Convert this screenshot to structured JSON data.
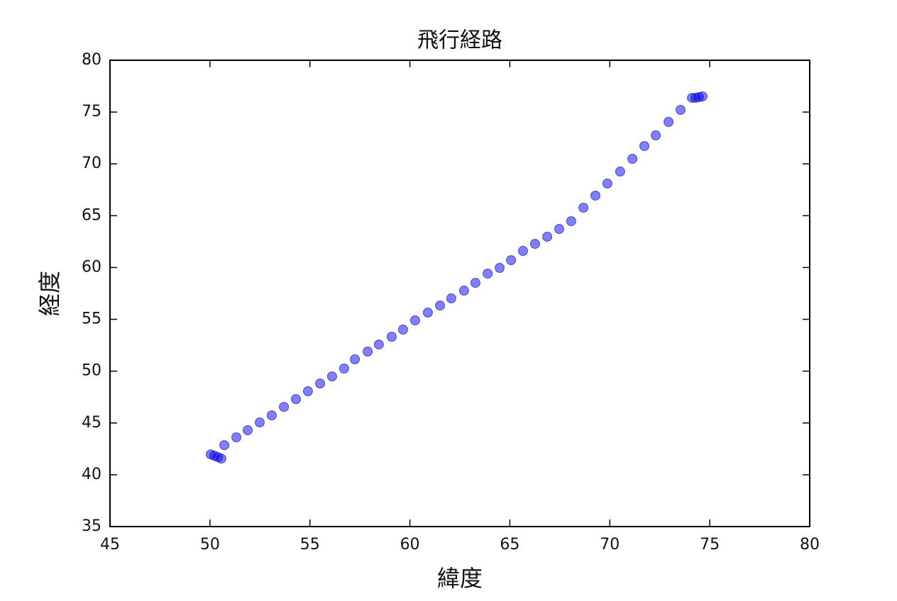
{
  "chart_data": {
    "type": "scatter",
    "title": "飛行経路",
    "xlabel": "緯度",
    "ylabel": "経度",
    "x": [
      50.04,
      50.22,
      50.4,
      50.57,
      50.72,
      51.32,
      51.89,
      52.49,
      53.09,
      53.7,
      54.3,
      54.9,
      55.51,
      56.11,
      56.71,
      57.25,
      57.89,
      58.45,
      59.09,
      59.66,
      60.26,
      60.9,
      61.51,
      62.07,
      62.71,
      63.28,
      63.89,
      64.49,
      65.06,
      65.66,
      66.26,
      66.87,
      67.47,
      68.07,
      68.68,
      69.28,
      69.88,
      70.52,
      71.13,
      71.73,
      72.3,
      72.94,
      73.54,
      74.11,
      74.29,
      74.46,
      74.64
    ],
    "values": [
      41.97,
      41.83,
      41.7,
      41.56,
      42.86,
      43.61,
      44.3,
      45.05,
      45.73,
      46.55,
      47.3,
      48.06,
      48.81,
      49.49,
      50.25,
      51.14,
      51.89,
      52.57,
      53.32,
      54.01,
      54.9,
      55.65,
      56.33,
      57.02,
      57.77,
      58.52,
      59.41,
      59.96,
      60.71,
      61.6,
      62.28,
      62.97,
      63.72,
      64.47,
      65.77,
      66.94,
      68.1,
      69.26,
      70.49,
      71.72,
      72.75,
      74.05,
      75.21,
      76.37,
      76.37,
      76.44,
      76.51
    ],
    "color": "#0000ff",
    "xlim": [
      45,
      80
    ],
    "xticks": [
      45,
      50,
      55,
      60,
      65,
      70,
      75,
      80
    ],
    "ylim": [
      35,
      80
    ],
    "yticks": [
      35,
      40,
      45,
      50,
      55,
      60,
      65,
      70,
      75,
      80
    ]
  }
}
